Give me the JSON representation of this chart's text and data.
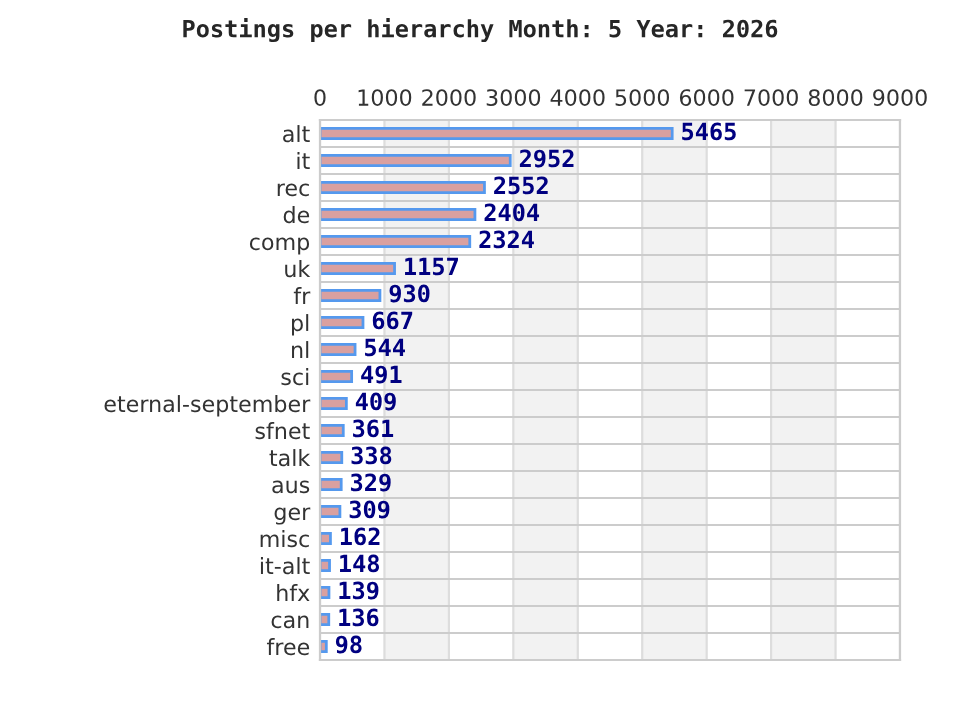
{
  "chart_data": {
    "type": "bar",
    "orientation": "horizontal",
    "title": "Postings per hierarchy Month: 5 Year: 2026",
    "categories": [
      "alt",
      "it",
      "rec",
      "de",
      "comp",
      "uk",
      "fr",
      "pl",
      "nl",
      "sci",
      "eternal-september",
      "sfnet",
      "talk",
      "aus",
      "ger",
      "misc",
      "it-alt",
      "hfx",
      "can",
      "free"
    ],
    "values": [
      5465,
      2952,
      2552,
      2404,
      2324,
      1157,
      930,
      667,
      544,
      491,
      409,
      361,
      338,
      329,
      309,
      162,
      148,
      139,
      136,
      98
    ],
    "color": "#d9a0a0",
    "xlim": [
      0,
      9000
    ],
    "xticks": [
      0,
      1000,
      2000,
      3000,
      4000,
      5000,
      6000,
      7000,
      8000,
      9000
    ],
    "bands": [
      {
        "axis": "x",
        "from": 1000,
        "to": 2000,
        "color": "#f2f2f2"
      },
      {
        "axis": "x",
        "from": 3000,
        "to": 4000,
        "color": "#f2f2f2"
      },
      {
        "axis": "x",
        "from": 5000,
        "to": 6000,
        "color": "#f2f2f2"
      },
      {
        "axis": "x",
        "from": 7000,
        "to": 8000,
        "color": "#f2f2f2"
      }
    ],
    "grid": true,
    "data_labels": true
  }
}
